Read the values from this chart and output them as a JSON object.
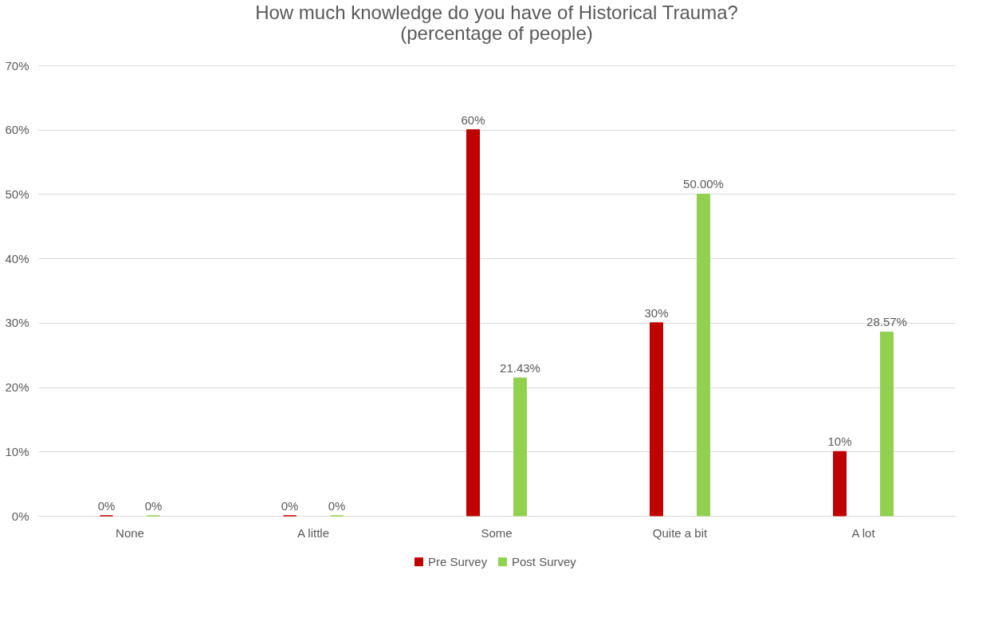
{
  "chart_data": {
    "type": "bar",
    "title": "How much knowledge do you have of Historical Trauma?\n(percentage of people)",
    "categories": [
      "None",
      "A little",
      "Some",
      "Quite a bit",
      "A lot"
    ],
    "series": [
      {
        "name": "Pre Survey",
        "color": "#c00000",
        "values": [
          0,
          0,
          60,
          30,
          10
        ],
        "value_labels": [
          "0%",
          "0%",
          "60%",
          "30%",
          "10%"
        ]
      },
      {
        "name": "Post Survey",
        "color": "#92d050",
        "values": [
          0,
          0,
          21.43,
          50,
          28.57
        ],
        "value_labels": [
          "0%",
          "0%",
          "21.43%",
          "50.00%",
          "28.57%"
        ]
      }
    ],
    "ylim": [
      0,
      70
    ],
    "yticks": [
      {
        "value": 0,
        "label": "0%"
      },
      {
        "value": 10,
        "label": "10%"
      },
      {
        "value": 20,
        "label": "20%"
      },
      {
        "value": 30,
        "label": "30%"
      },
      {
        "value": 40,
        "label": "40%"
      },
      {
        "value": 50,
        "label": "50%"
      },
      {
        "value": 60,
        "label": "60%"
      },
      {
        "value": 70,
        "label": "70%"
      }
    ],
    "grid": "y",
    "legend": "bottom"
  }
}
